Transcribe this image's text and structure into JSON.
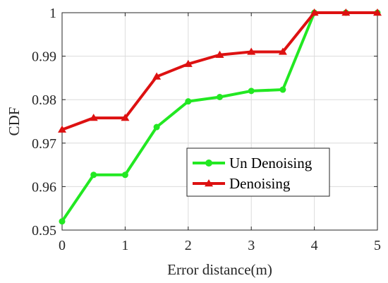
{
  "chart_data": {
    "type": "line",
    "xlabel": "Error distance(m)",
    "ylabel": "CDF",
    "xlim": [
      0,
      5
    ],
    "ylim": [
      0.95,
      1
    ],
    "xticks": [
      0,
      1,
      2,
      3,
      4,
      5
    ],
    "xtick_labels": [
      "0",
      "1",
      "2",
      "3",
      "4",
      "5"
    ],
    "yticks": [
      0.95,
      0.96,
      0.97,
      0.98,
      0.99,
      1
    ],
    "ytick_labels": [
      "0.95",
      "0.96",
      "0.97",
      "0.98",
      "0.99",
      "1"
    ],
    "grid": true,
    "legend_position": "center-right",
    "x": [
      0,
      0.5,
      1,
      1.5,
      2,
      2.5,
      3,
      3.5,
      4,
      4.5,
      5
    ],
    "series": [
      {
        "name": "Un Denoising",
        "color": "#22e822",
        "marker": "circle",
        "values": [
          0.952,
          0.9627,
          0.9627,
          0.9737,
          0.9796,
          0.9806,
          0.982,
          0.9823,
          1.0,
          1.0,
          1.0
        ]
      },
      {
        "name": "Denoising",
        "color": "#dd1111",
        "marker": "triangle",
        "values": [
          0.9731,
          0.9758,
          0.9758,
          0.9853,
          0.9882,
          0.9903,
          0.991,
          0.991,
          1.0,
          1.0,
          1.0
        ]
      }
    ]
  }
}
